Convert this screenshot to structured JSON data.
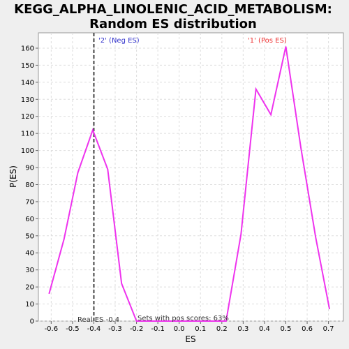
{
  "chart_data": {
    "type": "line",
    "title_line1": "KEGG_ALPHA_LINOLENIC_ACID_METABOLISM:",
    "title_line2": "Random ES distribution",
    "xlabel": "ES",
    "ylabel": "P(ES)",
    "xlim": [
      -0.66,
      0.77
    ],
    "ylim": [
      0,
      169
    ],
    "x_ticks": [
      -0.6,
      -0.5,
      -0.4,
      -0.3,
      -0.2,
      -0.1,
      0.0,
      0.1,
      0.2,
      0.3,
      0.4,
      0.5,
      0.6,
      0.7
    ],
    "x_tick_labels": [
      "-0.6",
      "-0.5",
      "-0.4",
      "-0.3",
      "-0.2",
      "-0.1",
      "0.0",
      "0.1",
      "0.2",
      "0.3",
      "0.4",
      "0.5",
      "0.6",
      "0.7"
    ],
    "y_ticks": [
      0,
      10,
      20,
      30,
      40,
      50,
      60,
      70,
      80,
      90,
      100,
      110,
      120,
      130,
      140,
      150,
      160
    ],
    "y_tick_labels": [
      "0",
      "10",
      "20",
      "30",
      "40",
      "50",
      "60",
      "70",
      "80",
      "90",
      "100",
      "110",
      "120",
      "130",
      "140",
      "150",
      "160"
    ],
    "grid": true,
    "series": [
      {
        "color": "#ee33ee",
        "x": [
          -0.61,
          -0.54,
          -0.475,
          -0.405,
          -0.335,
          -0.27,
          -0.2,
          -0.13,
          -0.06,
          0.01,
          0.08,
          0.15,
          0.22,
          0.29,
          0.36,
          0.43,
          0.5,
          0.57,
          0.64,
          0.705
        ],
        "y": [
          16,
          48,
          87,
          112,
          89,
          22,
          0,
          0,
          0,
          0,
          0,
          0,
          0,
          51,
          136,
          121,
          161,
          102,
          49,
          7
        ]
      }
    ],
    "real_es": -0.4,
    "annotations": {
      "neg_label": "'2' (Neg ES)",
      "pos_label": "'1' (Pos ES)",
      "real_es_label": "Real ES -0.4",
      "sets_label": "Sets with pos scores: 63%"
    },
    "colors": {
      "neg": "#3333cc",
      "pos": "#ee3333",
      "grid": "#dddddd",
      "plot_bg": "#ffffff"
    }
  }
}
